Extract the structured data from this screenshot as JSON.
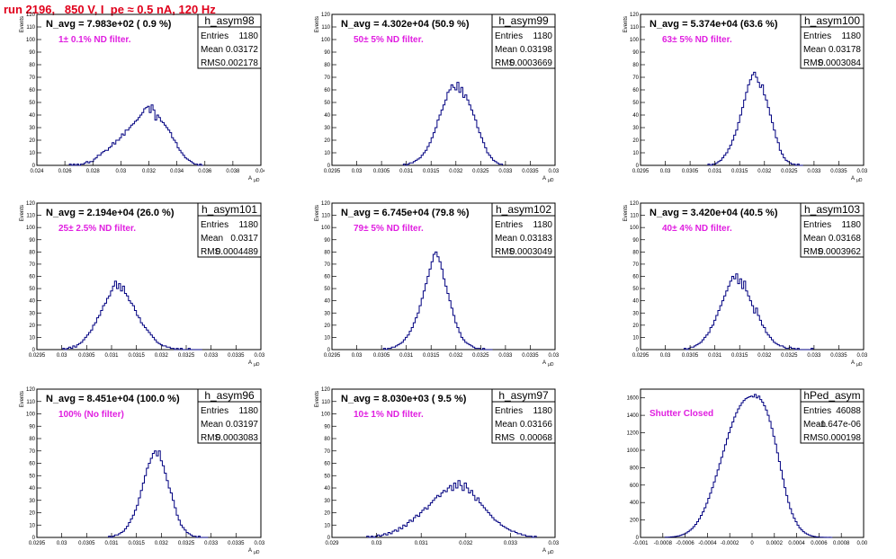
{
  "header": {
    "run_title": "run 2196,   850 V, I_pe ≈ 0.5 nA, 120 Hz"
  },
  "colors": {
    "title": "#e0001b",
    "annotation": "#e01ee0",
    "histogram_line": "#000080",
    "frame": "#000000"
  },
  "chart_data": [
    {
      "type": "histogram",
      "title": "h_asym98",
      "stats": {
        "entries": "1180",
        "mean": "0.03172",
        "rms": "0.002178"
      },
      "n_avg": "N_avg = 7.983e+02 ( 0.9 %)",
      "annotation": "1± 0.1% ND filter.",
      "xlabel": "A",
      "xlabel_sub": "μD",
      "ylabel": "Events",
      "xlim": [
        0.024,
        0.04
      ],
      "x_ticks": [
        "0.024",
        "0.026",
        "0.028",
        "0.03",
        "0.032",
        "0.034",
        "0.036",
        "0.038",
        "0.04"
      ],
      "ylim": [
        0,
        120
      ],
      "y_ticks": [
        "0",
        "10",
        "20",
        "30",
        "40",
        "50",
        "60",
        "70",
        "80",
        "90",
        "100",
        "110",
        "120"
      ],
      "bin_edges": [
        0.02632,
        0.03588
      ],
      "bin_counts": [
        1,
        0,
        1,
        0,
        1,
        0,
        1,
        1,
        2,
        3,
        2,
        3,
        3,
        5,
        6,
        8,
        8,
        10,
        11,
        12,
        12,
        14,
        15,
        18,
        17,
        20,
        20,
        22,
        25,
        24,
        28,
        28,
        30,
        32,
        33,
        35,
        36,
        38,
        40,
        42,
        45,
        46,
        47,
        42,
        48,
        44,
        36,
        40,
        38,
        35,
        34,
        32,
        30,
        28,
        26,
        22,
        20,
        18,
        14,
        12,
        10,
        8,
        6,
        5,
        4,
        3,
        2,
        1,
        1,
        0,
        1,
        0
      ]
    },
    {
      "type": "histogram",
      "title": "h_asym99",
      "stats": {
        "entries": "1180",
        "mean": "0.03198",
        "rms": "0.0003669"
      },
      "n_avg": "N_avg = 4.302e+04 (50.9 %)",
      "annotation": "50± 5% ND filter.",
      "xlabel": "A",
      "xlabel_sub": "μD",
      "ylabel": "Events",
      "xlim": [
        0.0295,
        0.034
      ],
      "x_ticks": [
        "0.0295",
        "0.03",
        "0.0305",
        "0.031",
        "0.0315",
        "0.032",
        "0.0325",
        "0.033",
        "0.0335",
        "0.034"
      ],
      "ylim": [
        0,
        120
      ],
      "y_ticks": [
        "0",
        "10",
        "20",
        "30",
        "40",
        "50",
        "60",
        "70",
        "80",
        "90",
        "100",
        "110",
        "120"
      ],
      "bin_edges": [
        0.03094,
        0.03294
      ],
      "bin_counts": [
        1,
        0,
        1,
        2,
        2,
        3,
        4,
        5,
        6,
        8,
        10,
        12,
        15,
        18,
        22,
        26,
        30,
        36,
        40,
        44,
        48,
        52,
        58,
        60,
        64,
        62,
        60,
        66,
        58,
        62,
        54,
        56,
        52,
        48,
        44,
        40,
        36,
        30,
        26,
        22,
        18,
        14,
        10,
        8,
        6,
        4,
        3,
        2,
        1,
        1
      ]
    },
    {
      "type": "histogram",
      "title": "h_asym100",
      "stats": {
        "entries": "1180",
        "mean": "0.03178",
        "rms": "0.0003084"
      },
      "n_avg": "N_avg = 5.374e+04 (63.6 %)",
      "annotation": "63± 5% ND filter.",
      "xlabel": "A",
      "xlabel_sub": "μD",
      "ylabel": "Events",
      "xlim": [
        0.0295,
        0.034
      ],
      "x_ticks": [
        "0.0295",
        "0.03",
        "0.0305",
        "0.031",
        "0.0315",
        "0.032",
        "0.0325",
        "0.033",
        "0.0335",
        "0.034"
      ],
      "ylim": [
        0,
        120
      ],
      "y_ticks": [
        "0",
        "10",
        "20",
        "30",
        "40",
        "50",
        "60",
        "70",
        "80",
        "90",
        "100",
        "110",
        "120"
      ],
      "bin_edges": [
        0.03086,
        0.03278
      ],
      "bin_counts": [
        1,
        0,
        1,
        1,
        2,
        3,
        4,
        6,
        8,
        10,
        13,
        16,
        20,
        24,
        28,
        34,
        40,
        46,
        52,
        58,
        64,
        68,
        72,
        74,
        70,
        66,
        62,
        64,
        56,
        52,
        46,
        40,
        34,
        28,
        22,
        18,
        12,
        9,
        6,
        4,
        3,
        2,
        1,
        1,
        0,
        1,
        0,
        0
      ]
    },
    {
      "type": "histogram",
      "title": "h_asym101",
      "stats": {
        "entries": "1180",
        "mean": "0.0317",
        "rms": "0.0004489"
      },
      "n_avg": "N_avg = 2.194e+04 (26.0 %)",
      "annotation": "25± 2.5% ND filter.",
      "xlabel": "A",
      "xlabel_sub": "μD",
      "ylabel": "Events",
      "xlim": [
        0.0295,
        0.034
      ],
      "x_ticks": [
        "0.0295",
        "0.03",
        "0.0305",
        "0.031",
        "0.0315",
        "0.032",
        "0.0325",
        "0.033",
        "0.0335",
        "0.034"
      ],
      "ylim": [
        0,
        120
      ],
      "y_ticks": [
        "0",
        "10",
        "20",
        "30",
        "40",
        "50",
        "60",
        "70",
        "80",
        "90",
        "100",
        "110",
        "120"
      ],
      "bin_edges": [
        0.03002,
        0.03282
      ],
      "bin_counts": [
        1,
        0,
        1,
        2,
        1,
        3,
        2,
        4,
        5,
        6,
        8,
        10,
        12,
        14,
        16,
        20,
        22,
        26,
        28,
        32,
        36,
        38,
        42,
        44,
        48,
        52,
        56,
        50,
        54,
        48,
        52,
        46,
        44,
        40,
        38,
        36,
        32,
        28,
        26,
        22,
        20,
        18,
        16,
        14,
        12,
        10,
        8,
        6,
        5,
        4,
        3,
        3,
        2,
        2,
        1,
        1,
        0,
        1,
        0,
        1,
        0,
        0,
        0,
        1,
        0,
        0,
        0,
        0,
        0,
        0
      ]
    },
    {
      "type": "histogram",
      "title": "h_asym102",
      "stats": {
        "entries": "1180",
        "mean": "0.03183",
        "rms": "0.0003049"
      },
      "n_avg": "N_avg = 6.745e+04 (79.8 %)",
      "annotation": "79± 5% ND filter.",
      "xlabel": "A",
      "xlabel_sub": "μD",
      "ylabel": "Events",
      "xlim": [
        0.0295,
        0.034
      ],
      "x_ticks": [
        "0.0295",
        "0.03",
        "0.0305",
        "0.031",
        "0.0315",
        "0.032",
        "0.0325",
        "0.033",
        "0.0335",
        "0.034"
      ],
      "ylim": [
        0,
        120
      ],
      "y_ticks": [
        "0",
        "10",
        "20",
        "30",
        "40",
        "50",
        "60",
        "70",
        "80",
        "90",
        "100",
        "110",
        "120"
      ],
      "bin_edges": [
        0.03054,
        0.03274
      ],
      "bin_counts": [
        1,
        0,
        1,
        1,
        2,
        2,
        3,
        4,
        5,
        6,
        8,
        10,
        12,
        15,
        18,
        22,
        26,
        30,
        36,
        42,
        48,
        54,
        60,
        66,
        72,
        78,
        80,
        76,
        72,
        66,
        58,
        52,
        46,
        40,
        34,
        28,
        22,
        18,
        14,
        10,
        8,
        6,
        5,
        4,
        3,
        2,
        1,
        1,
        1,
        0,
        1,
        0,
        0,
        0,
        0
      ]
    },
    {
      "type": "histogram",
      "title": "h_asym103",
      "stats": {
        "entries": "1180",
        "mean": "0.03168",
        "rms": "0.0003962"
      },
      "n_avg": "N_avg = 3.420e+04 (40.5 %)",
      "annotation": "40± 4% ND filter.",
      "xlabel": "A",
      "xlabel_sub": "μD",
      "ylabel": "Events",
      "xlim": [
        0.0295,
        0.034
      ],
      "x_ticks": [
        "0.0295",
        "0.03",
        "0.0305",
        "0.031",
        "0.0315",
        "0.032",
        "0.0325",
        "0.033",
        "0.0335",
        "0.034"
      ],
      "ylim": [
        0,
        120
      ],
      "y_ticks": [
        "0",
        "10",
        "20",
        "30",
        "40",
        "50",
        "60",
        "70",
        "80",
        "90",
        "100",
        "110",
        "120"
      ],
      "bin_edges": [
        0.03038,
        0.03298
      ],
      "bin_counts": [
        1,
        0,
        1,
        2,
        2,
        3,
        4,
        5,
        6,
        8,
        10,
        12,
        14,
        18,
        20,
        24,
        28,
        32,
        36,
        40,
        44,
        48,
        52,
        56,
        60,
        58,
        62,
        54,
        58,
        50,
        56,
        48,
        44,
        40,
        36,
        30,
        34,
        28,
        24,
        20,
        18,
        14,
        12,
        10,
        8,
        6,
        5,
        4,
        3,
        3,
        2,
        1,
        1,
        2,
        1,
        1,
        0,
        1,
        0,
        0,
        0,
        0,
        0,
        0,
        1
      ]
    },
    {
      "type": "histogram",
      "title": "h_asym96",
      "stats": {
        "entries": "1180",
        "mean": "0.03197",
        "rms": "0.0003083"
      },
      "n_avg": "N_avg = 8.451e+04 (100.0 %)",
      "annotation": "100% (No filter)",
      "xlabel": "A",
      "xlabel_sub": "μD",
      "ylabel": "Events",
      "xlim": [
        0.0295,
        0.034
      ],
      "x_ticks": [
        "0.0295",
        "0.03",
        "0.0305",
        "0.031",
        "0.0315",
        "0.032",
        "0.0325",
        "0.033",
        "0.0335",
        "0.034"
      ],
      "ylim": [
        0,
        120
      ],
      "y_ticks": [
        "0",
        "10",
        "20",
        "30",
        "40",
        "50",
        "60",
        "70",
        "80",
        "90",
        "100",
        "110",
        "120"
      ],
      "bin_edges": [
        0.03094,
        0.03294
      ],
      "bin_counts": [
        1,
        0,
        1,
        2,
        2,
        3,
        4,
        5,
        7,
        9,
        12,
        15,
        18,
        22,
        26,
        32,
        38,
        44,
        50,
        56,
        60,
        64,
        68,
        70,
        66,
        70,
        62,
        58,
        52,
        46,
        40,
        36,
        30,
        24,
        18,
        14,
        10,
        8,
        6,
        4,
        3,
        2,
        1,
        1,
        0,
        1,
        0,
        0,
        0,
        0
      ]
    },
    {
      "type": "histogram",
      "title": "h_asym97",
      "stats": {
        "entries": "1180",
        "mean": "0.03166",
        "rms": "0.00068"
      },
      "n_avg": "N_avg = 8.030e+03 ( 9.5 %)",
      "annotation": "10± 1% ND filter.",
      "xlabel": "A",
      "xlabel_sub": "μD",
      "ylabel": "Events",
      "xlim": [
        0.029,
        0.034
      ],
      "x_ticks": [
        "0.029",
        "0.03",
        "0.031",
        "0.032",
        "0.033",
        "0.034"
      ],
      "ylim": [
        0,
        120
      ],
      "y_ticks": [
        "0",
        "10",
        "20",
        "30",
        "40",
        "50",
        "60",
        "70",
        "80",
        "90",
        "100",
        "110",
        "120"
      ],
      "bin_edges": [
        0.02978,
        0.03358
      ],
      "bin_counts": [
        1,
        0,
        1,
        0,
        1,
        2,
        1,
        2,
        3,
        2,
        4,
        3,
        5,
        6,
        5,
        8,
        7,
        10,
        9,
        12,
        14,
        13,
        16,
        18,
        17,
        20,
        22,
        24,
        23,
        26,
        28,
        30,
        32,
        34,
        33,
        36,
        38,
        37,
        40,
        42,
        38,
        44,
        40,
        46,
        42,
        38,
        44,
        40,
        36,
        38,
        34,
        30,
        32,
        28,
        26,
        24,
        22,
        20,
        18,
        16,
        14,
        13,
        12,
        10,
        9,
        8,
        7,
        6,
        5,
        5,
        4,
        3,
        3,
        2,
        2,
        1,
        1,
        1,
        0,
        1
      ]
    },
    {
      "type": "histogram",
      "title": "hPed_asym",
      "stats": {
        "entries": "46088",
        "mean": "-1.647e-06",
        "rms": "0.000198"
      },
      "annotation": "Shutter Closed",
      "xlabel": "",
      "ylabel": "",
      "xlim": [
        -0.001,
        0.001
      ],
      "x_ticks": [
        "-0.001",
        "-0.0008",
        "-0.0006",
        "-0.0004",
        "-0.0002",
        "0",
        "0.0002",
        "0.0004",
        "0.0006",
        "0.0008",
        "0.001"
      ],
      "ylim": [
        0,
        1700
      ],
      "y_ticks": [
        "0",
        "200",
        "400",
        "600",
        "800",
        "1000",
        "1200",
        "1400",
        "1600"
      ],
      "bin_edges": [
        -0.00078,
        0.00072
      ],
      "bin_counts": [
        2,
        3,
        4,
        6,
        8,
        10,
        14,
        18,
        24,
        32,
        40,
        52,
        66,
        82,
        100,
        124,
        150,
        180,
        214,
        252,
        294,
        340,
        392,
        448,
        508,
        570,
        636,
        704,
        774,
        846,
        918,
        990,
        1062,
        1132,
        1200,
        1264,
        1324,
        1380,
        1430,
        1474,
        1512,
        1544,
        1570,
        1590,
        1604,
        1612,
        1620,
        1610,
        1640,
        1600,
        1620,
        1580,
        1550,
        1510,
        1460,
        1400,
        1330,
        1250,
        1160,
        1070,
        970,
        870,
        770,
        670,
        570,
        480,
        400,
        330,
        270,
        220,
        180,
        140,
        110,
        86,
        66,
        50,
        38,
        28,
        20,
        14,
        10,
        7,
        5,
        3,
        2,
        1,
        1,
        0,
        1,
        0
      ]
    }
  ]
}
